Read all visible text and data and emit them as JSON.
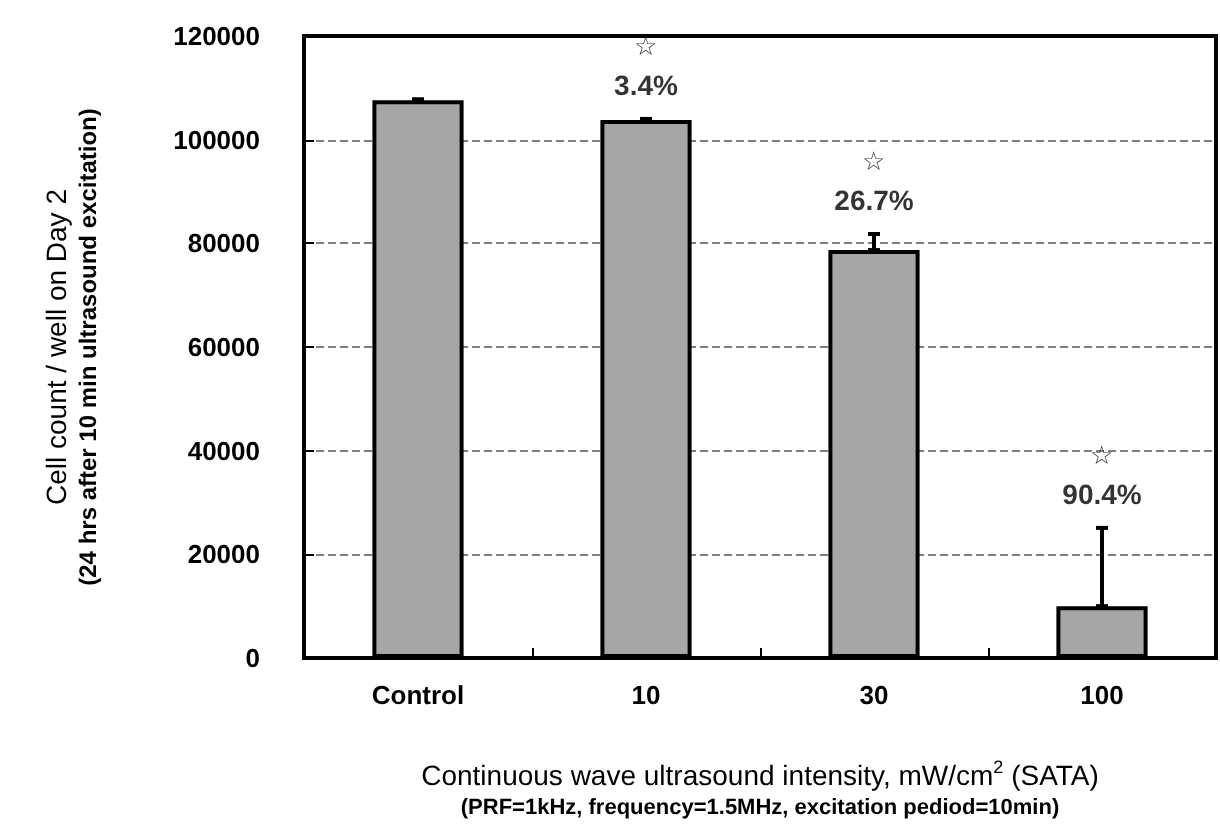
{
  "chart_data": {
    "type": "bar",
    "xlabel": "Continuous wave ultrasound intensity, mW/cm$^{2}$ (SATA)\n(PRF=1kHz, frequency=1.5MHz, excitation pediod=10min)",
    "ylabel": "Cell count / well on Day 2\n(24 hrs after 10 min ultrasound excitation)",
    "categories": [
      "Control",
      "10",
      "30",
      "100"
    ],
    "values": [
      107600,
      103800,
      78700,
      10000
    ],
    "color": "#a6a6a6",
    "errors": [
      [
        107600,
        107800
      ],
      [
        103800,
        104000
      ],
      [
        78700,
        81800
      ],
      [
        10000,
        25100
      ]
    ],
    "ylim": [
      0,
      120000
    ],
    "yticks": [
      0,
      20000,
      40000,
      60000,
      80000,
      100000,
      120000
    ],
    "grid": "y",
    "line_style": "dashed",
    "annotations": [
      "☆",
      "3.4%",
      "☆",
      "26.7%",
      "☆",
      "90.4%"
    ]
  }
}
